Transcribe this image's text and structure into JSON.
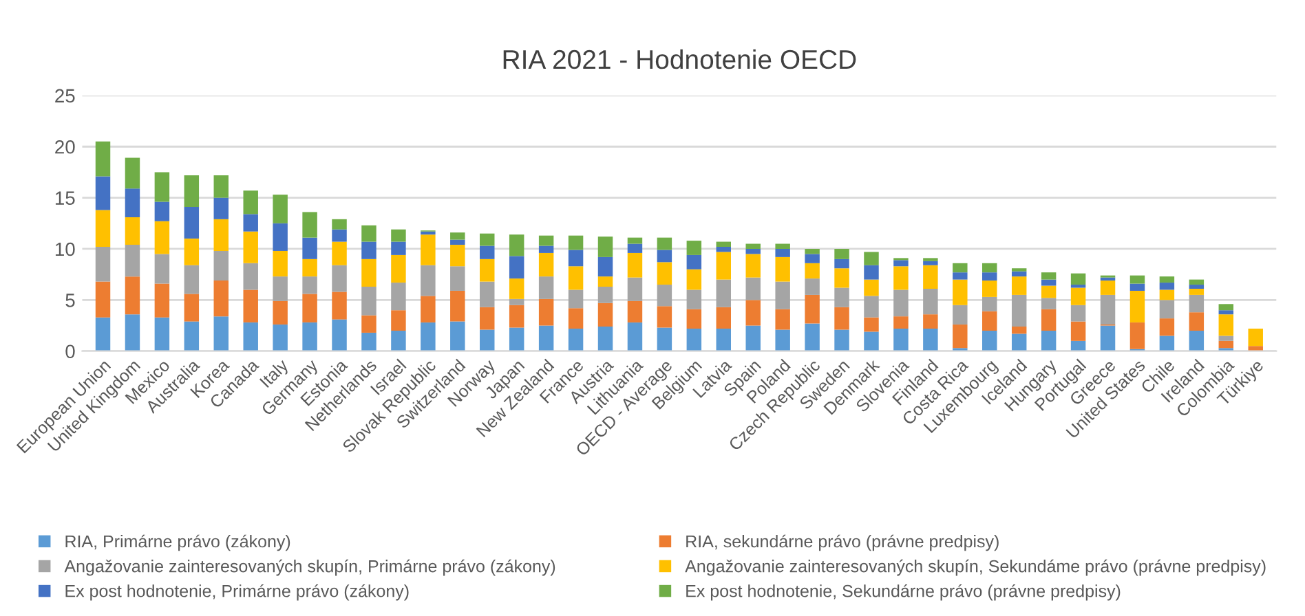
{
  "chart_data": {
    "type": "bar",
    "title": "RIA 2021 - Hodnotenie OECD",
    "stacked": true,
    "categories": [
      "European Union",
      "United Kingdom",
      "Mexico",
      "Australia",
      "Korea",
      "Canada",
      "Italy",
      "Germany",
      "Estonia",
      "Netherlands",
      "Israel",
      "Slovak Republic",
      "Switzerland",
      "Norway",
      "Japan",
      "New Zealand",
      "France",
      "Austria",
      "Lithuania",
      "OECD - Average",
      "Belgium",
      "Latvia",
      "Spain",
      "Poland",
      "Czech Republic",
      "Sweden",
      "Denmark",
      "Slovenia",
      "Finland",
      "Costa Rica",
      "Luxembourg",
      "Iceland",
      "Hungary",
      "Portugal",
      "Greece",
      "United States",
      "Chile",
      "Ireland",
      "Colombia",
      "Türkiye"
    ],
    "series": [
      {
        "name": "RIA, Primárne právo (zákony)",
        "color": "#5b9bd5",
        "values": [
          3.3,
          3.6,
          3.3,
          2.9,
          3.4,
          2.8,
          2.6,
          2.8,
          3.1,
          1.8,
          2.0,
          2.8,
          2.9,
          2.1,
          2.3,
          2.5,
          2.2,
          2.4,
          2.8,
          2.3,
          2.2,
          2.2,
          2.5,
          2.1,
          2.7,
          2.1,
          1.9,
          2.2,
          2.2,
          0.3,
          2.0,
          1.7,
          2.0,
          1.0,
          2.5,
          0.2,
          1.5,
          2.0,
          0.3,
          0
        ]
      },
      {
        "name": "RIA, sekundárne právo (právne predpisy)",
        "color": "#ed7d31",
        "values": [
          3.5,
          3.7,
          3.3,
          2.7,
          3.5,
          3.2,
          2.3,
          2.8,
          2.7,
          1.7,
          2.0,
          2.6,
          3.0,
          2.2,
          2.2,
          2.6,
          2.0,
          2.3,
          2.1,
          2.1,
          1.9,
          2.1,
          2.5,
          2.0,
          2.8,
          2.2,
          1.4,
          1.2,
          1.4,
          2.3,
          1.9,
          0.7,
          2.1,
          1.9,
          0.1,
          2.6,
          1.7,
          1.8,
          0.7,
          0.5
        ]
      },
      {
        "name": "Angažovanie zainteresovaných skupín, Primárne právo (zákony)",
        "color": "#a5a5a5",
        "values": [
          3.4,
          3.1,
          2.9,
          2.8,
          2.9,
          2.6,
          2.4,
          1.7,
          2.6,
          2.8,
          2.7,
          3.0,
          2.4,
          2.5,
          0.6,
          2.2,
          1.8,
          1.6,
          2.3,
          2.1,
          1.9,
          2.7,
          2.2,
          2.7,
          1.6,
          1.9,
          2.1,
          2.6,
          2.5,
          1.9,
          1.4,
          3.1,
          1.1,
          1.6,
          2.9,
          null,
          1.8,
          1.7,
          0.5,
          0
        ]
      },
      {
        "name": "Angažovanie zainteresovaných skupín, Sekundáme právo (právne predpisy)",
        "color": "#ffc000",
        "values": [
          3.6,
          2.7,
          3.2,
          2.6,
          3.1,
          3.1,
          2.5,
          1.7,
          2.3,
          2.7,
          2.7,
          3.0,
          2.1,
          2.2,
          2.0,
          2.3,
          2.3,
          1.0,
          2.4,
          2.2,
          2.0,
          2.7,
          2.3,
          2.4,
          1.5,
          1.9,
          1.6,
          2.3,
          2.3,
          2.5,
          1.6,
          1.8,
          1.2,
          1.7,
          1.4,
          3.1,
          1.0,
          0.6,
          2.1,
          1.7
        ]
      },
      {
        "name": "Ex post hodnotenie, Primárne právo (zákony)",
        "color": "#4472c4",
        "values": [
          3.3,
          2.8,
          1.9,
          3.1,
          2.1,
          1.7,
          2.7,
          2.1,
          1.2,
          1.7,
          1.3,
          0.3,
          0.5,
          1.3,
          2.2,
          0.7,
          1.6,
          1.9,
          0.9,
          1.2,
          1.4,
          0.5,
          0.5,
          0.8,
          0.9,
          0.9,
          1.4,
          0.6,
          0.4,
          0.7,
          0.8,
          0.5,
          0.6,
          0.3,
          0.3,
          0.7,
          0.7,
          0.4,
          0.4,
          0
        ]
      },
      {
        "name": "Ex post hodnotenie, Sekundárne právo (právne predpisy)",
        "color": "#70ad47",
        "values": [
          3.4,
          3.0,
          2.9,
          3.1,
          2.2,
          2.3,
          2.8,
          2.5,
          1.0,
          1.6,
          1.2,
          0.1,
          0.7,
          1.2,
          2.1,
          1.0,
          1.4,
          2.0,
          0.6,
          1.2,
          1.4,
          0.5,
          0.5,
          0.5,
          0.5,
          1.0,
          1.3,
          0.2,
          0.3,
          0.9,
          0.9,
          0.3,
          0.7,
          1.1,
          0.2,
          0.8,
          0.6,
          0.5,
          0.6,
          0
        ]
      }
    ],
    "ylim": [
      0,
      25
    ],
    "yticks": [
      0,
      5,
      10,
      15,
      20,
      25
    ],
    "grid": "y",
    "legend": "bottom"
  }
}
